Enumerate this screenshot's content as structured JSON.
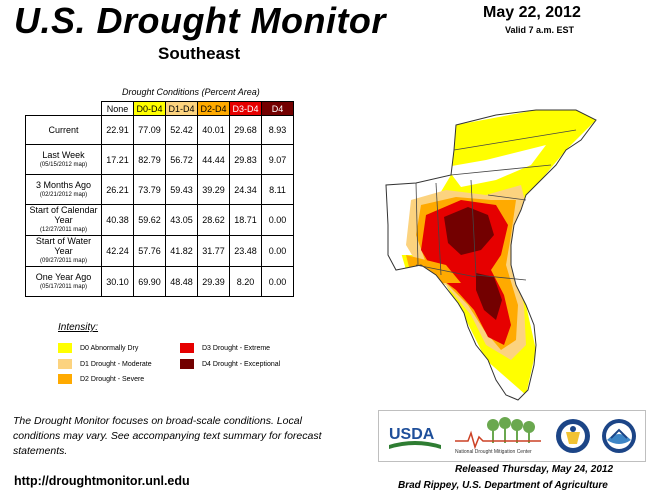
{
  "header": {
    "title": "U.S. Drought Monitor",
    "region": "Southeast",
    "date": "May 22, 2012",
    "valid": "Valid 7 a.m. EST"
  },
  "table": {
    "caption": "Drought Conditions (Percent Area)",
    "columns": [
      "None",
      "D0-D4",
      "D1-D4",
      "D2-D4",
      "D3-D4",
      "D4"
    ],
    "rows": [
      {
        "label": "Current",
        "sub": "",
        "values": [
          "22.91",
          "77.09",
          "52.42",
          "40.01",
          "29.68",
          "8.93"
        ]
      },
      {
        "label": "Last Week",
        "sub": "(05/15/2012 map)",
        "values": [
          "17.21",
          "82.79",
          "56.72",
          "44.44",
          "29.83",
          "9.07"
        ]
      },
      {
        "label": "3 Months Ago",
        "sub": "(02/21/2012 map)",
        "values": [
          "26.21",
          "73.79",
          "59.43",
          "39.29",
          "24.34",
          "8.11"
        ]
      },
      {
        "label": "Start of Calendar Year",
        "sub": "(12/27/2011 map)",
        "values": [
          "40.38",
          "59.62",
          "43.05",
          "28.62",
          "18.71",
          "0.00"
        ]
      },
      {
        "label": "Start of Water Year",
        "sub": "(09/27/2011 map)",
        "values": [
          "42.24",
          "57.76",
          "41.82",
          "31.77",
          "23.48",
          "0.00"
        ]
      },
      {
        "label": "One Year Ago",
        "sub": "(05/17/2011 map)",
        "values": [
          "30.10",
          "69.90",
          "48.48",
          "29.39",
          "8.20",
          "0.00"
        ]
      }
    ]
  },
  "legend": {
    "title": "Intensity:",
    "items": [
      {
        "label": "D0 Abnormally Dry",
        "color": "#ffff00"
      },
      {
        "label": "D1 Drought - Moderate",
        "color": "#fcd37f"
      },
      {
        "label": "D2 Drought - Severe",
        "color": "#ffaa00"
      },
      {
        "label": "D3 Drought - Extreme",
        "color": "#e60000"
      },
      {
        "label": "D4 Drought - Exceptional",
        "color": "#730000"
      }
    ]
  },
  "footer": {
    "note": "The Drought Monitor focuses on broad-scale conditions. Local conditions may vary. See accompanying text summary for forecast statements.",
    "url": "http://droughtmonitor.unl.edu",
    "released": "Released Thursday, May 24, 2012",
    "author": "Brad Rippey, U.S. Department of Agriculture"
  },
  "logos": {
    "usda": "USDA",
    "ndmc": "National Drought Mitigation Center"
  }
}
